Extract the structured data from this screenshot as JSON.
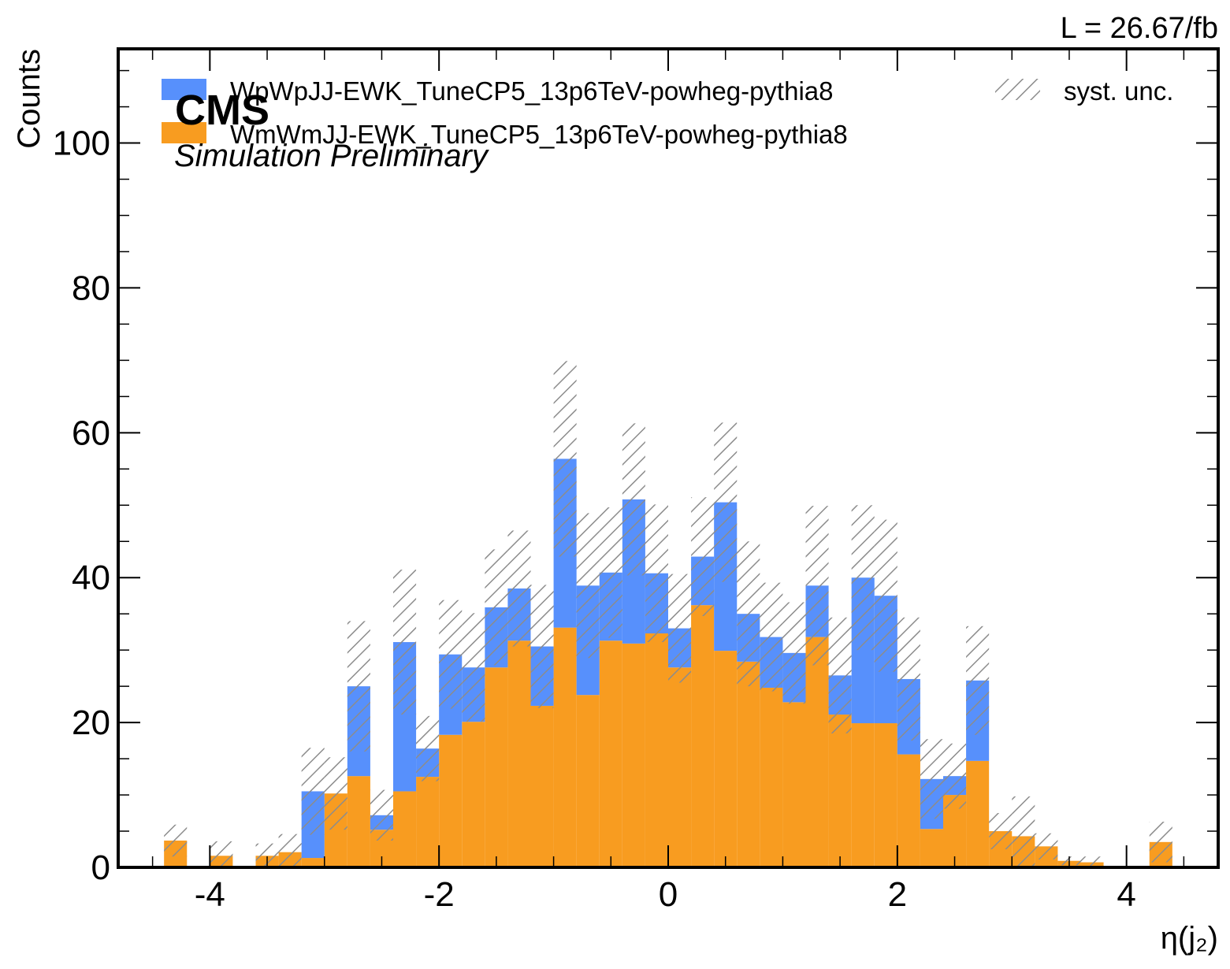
{
  "lumi_label": "L = 26.67/fb",
  "experiment": {
    "name": "CMS",
    "label": "Simulation Preliminary"
  },
  "legend": {
    "entries": [
      "WpWpJJ-EWK_TuneCP5_13p6TeV-powheg-pythia8",
      "WmWmJJ-EWK_TuneCP5_13p6TeV-powheg-pythia8"
    ],
    "unc_label": "syst. unc.",
    "placement": "top"
  },
  "colors": {
    "WpWp": "#5790fc",
    "WmWm": "#f89c20",
    "unc": "#8c8c8c",
    "axis": "#000000"
  },
  "chart_data": {
    "type": "bar",
    "stacked": true,
    "histogram": true,
    "xlabel": "η(j₂)",
    "ylabel": "Counts",
    "xlim": [
      -4.8,
      4.8
    ],
    "ylim": [
      0,
      113
    ],
    "bin_edges": [
      -4.4,
      -4.2,
      -4.0,
      -3.8,
      -3.6,
      -3.4,
      -3.2,
      -3.0,
      -2.8,
      -2.6,
      -2.4,
      -2.2,
      -2.0,
      -1.8,
      -1.6,
      -1.4,
      -1.2,
      -1.0,
      -0.8,
      -0.6,
      -0.4,
      -0.2,
      0.0,
      0.2,
      0.4,
      0.6,
      0.8,
      1.0,
      1.2,
      1.4,
      1.6,
      1.8,
      2.0,
      2.2,
      2.4,
      2.6,
      2.8,
      3.0,
      3.2,
      3.4,
      3.6,
      3.8,
      4.0,
      4.2,
      4.4
    ],
    "x_ticks": [
      -4,
      -2,
      0,
      2,
      4
    ],
    "x_tick_labels": [
      "-4",
      "-2",
      "0",
      "2",
      "4"
    ],
    "y_ticks": [
      0,
      20,
      40,
      60,
      80,
      100
    ],
    "y_tick_labels": [
      "0",
      "20",
      "40",
      "60",
      "80",
      "100"
    ],
    "series": [
      {
        "name": "WmWmJJ-EWK_TuneCP5_13p6TeV-powheg-pythia8",
        "values": [
          3.7,
          0,
          1.6,
          0,
          1.6,
          2.1,
          1.3,
          10.2,
          12.6,
          5.2,
          10.5,
          12.5,
          18.3,
          20.1,
          27.6,
          31.3,
          22.3,
          33.1,
          23.8,
          31.3,
          30.9,
          32.3,
          27.6,
          36.2,
          29.9,
          28.4,
          24.8,
          22.8,
          31.8,
          21.1,
          19.9,
          19.9,
          15.6,
          5.3,
          10.0,
          14.7,
          5.0,
          4.3,
          2.9,
          0.9,
          0.7,
          0,
          0,
          3.5
        ]
      },
      {
        "name": "WpWpJJ-EWK_TuneCP5_13p6TeV-powheg-pythia8",
        "values": [
          0,
          0,
          0,
          0,
          0,
          0,
          9.2,
          0,
          12.4,
          2.0,
          20.6,
          3.9,
          11.1,
          7.5,
          8.3,
          7.2,
          8.2,
          23.3,
          15.1,
          9.4,
          19.9,
          8.3,
          5.4,
          6.7,
          20.5,
          6.6,
          7.0,
          6.8,
          7.1,
          5.4,
          20.1,
          17.6,
          10.4,
          6.9,
          2.6,
          11.1,
          0,
          0,
          0,
          0,
          0,
          0,
          0,
          0
        ]
      }
    ],
    "syst_unc": [
      2.2,
      0,
      2.0,
      0,
      1.7,
      2.5,
      6.0,
      5.0,
      9.0,
      3.5,
      10.0,
      4.5,
      7.5,
      7.5,
      8.0,
      8.0,
      8.5,
      13.5,
      10.0,
      9.0,
      10.5,
      9.5,
      7.5,
      8.2,
      11.0,
      10.0,
      7.5,
      7.0,
      11.0,
      8.0,
      10.0,
      10.5,
      8.5,
      5.5,
      4.5,
      7.5,
      2.5,
      5.5,
      1.8,
      0.6,
      0.8,
      0,
      0,
      2.8
    ]
  }
}
